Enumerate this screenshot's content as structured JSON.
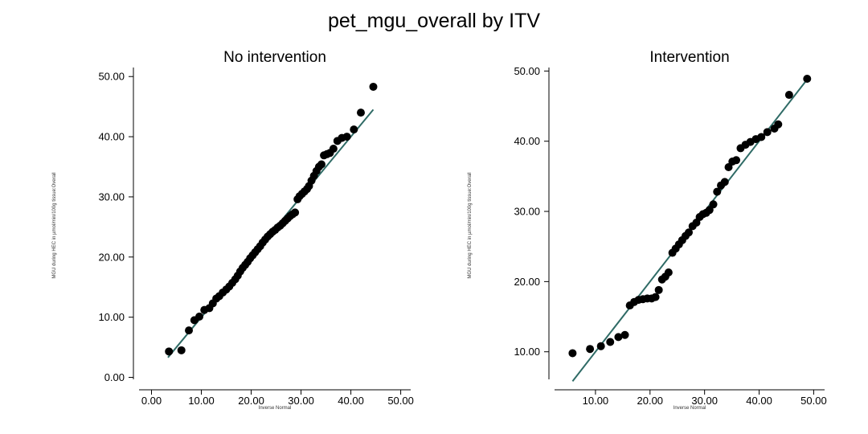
{
  "title": "pet_mgu_overall by ITV",
  "colors": {
    "points": "#000000",
    "fit_line": "#2f6b66",
    "axis": "#000000",
    "background": "#ffffff"
  },
  "chart_data": [
    {
      "type": "scatter",
      "subtitle": "No intervention",
      "xlabel": "Inverse Normal",
      "ylabel": "MGU during HEC in µmol/min/100g tissue:Overall",
      "xlim": [
        -2.5,
        52
      ],
      "ylim": [
        -1,
        51.5
      ],
      "xticks": [
        "0.00",
        "10.00",
        "20.00",
        "30.00",
        "40.00",
        "50.00"
      ],
      "yticks": [
        "0.00",
        "10.00",
        "20.00",
        "30.00",
        "40.00",
        "50.00"
      ],
      "grid": false,
      "fit_line": [
        [
          3.3,
          3.3
        ],
        [
          44.5,
          44.5
        ]
      ],
      "points": [
        [
          3.5,
          4.3
        ],
        [
          6.0,
          4.5
        ],
        [
          7.5,
          7.8
        ],
        [
          8.6,
          9.5
        ],
        [
          9.6,
          10.1
        ],
        [
          10.6,
          11.2
        ],
        [
          11.6,
          11.5
        ],
        [
          12.3,
          12.3
        ],
        [
          13.0,
          13.1
        ],
        [
          13.6,
          13.5
        ],
        [
          14.3,
          14.1
        ],
        [
          15.0,
          14.6
        ],
        [
          15.6,
          15.1
        ],
        [
          16.2,
          15.7
        ],
        [
          16.8,
          16.3
        ],
        [
          17.3,
          16.9
        ],
        [
          17.8,
          17.6
        ],
        [
          18.3,
          18.2
        ],
        [
          18.8,
          18.7
        ],
        [
          19.3,
          19.2
        ],
        [
          19.8,
          19.8
        ],
        [
          20.3,
          20.3
        ],
        [
          20.8,
          20.8
        ],
        [
          21.3,
          21.3
        ],
        [
          21.8,
          21.8
        ],
        [
          22.3,
          22.4
        ],
        [
          22.8,
          22.9
        ],
        [
          23.3,
          23.4
        ],
        [
          23.8,
          23.8
        ],
        [
          24.3,
          24.2
        ],
        [
          24.8,
          24.5
        ],
        [
          25.3,
          24.9
        ],
        [
          25.8,
          25.2
        ],
        [
          26.3,
          25.6
        ],
        [
          26.8,
          26.0
        ],
        [
          27.3,
          26.4
        ],
        [
          27.8,
          26.8
        ],
        [
          28.3,
          27.1
        ],
        [
          28.8,
          27.4
        ],
        [
          29.3,
          29.6
        ],
        [
          29.7,
          30.1
        ],
        [
          30.2,
          30.5
        ],
        [
          30.7,
          30.9
        ],
        [
          31.2,
          31.3
        ],
        [
          31.6,
          31.8
        ],
        [
          32.1,
          32.7
        ],
        [
          32.6,
          33.5
        ],
        [
          33.1,
          34.3
        ],
        [
          33.6,
          35.0
        ],
        [
          34.1,
          35.4
        ],
        [
          34.6,
          36.9
        ],
        [
          35.2,
          37.1
        ],
        [
          35.8,
          37.3
        ],
        [
          36.5,
          38.0
        ],
        [
          37.3,
          39.3
        ],
        [
          38.2,
          39.8
        ],
        [
          39.2,
          40.0
        ],
        [
          40.6,
          41.2
        ],
        [
          42.0,
          44.0
        ],
        [
          44.5,
          48.3
        ]
      ]
    },
    {
      "type": "scatter",
      "subtitle": "Intervention",
      "xlabel": "Inverse Normal",
      "ylabel": "MGU during HEC in µmol/min/100g tissue:Overall",
      "xlim": [
        2.5,
        52
      ],
      "ylim": [
        5.5,
        50.5
      ],
      "xticks": [
        "10.00",
        "20.00",
        "30.00",
        "40.00",
        "50.00"
      ],
      "yticks": [
        "10.00",
        "20.00",
        "30.00",
        "40.00",
        "50.00"
      ],
      "grid": false,
      "fit_line": [
        [
          5.8,
          5.8
        ],
        [
          49.0,
          49.0
        ]
      ],
      "points": [
        [
          5.8,
          9.8
        ],
        [
          9.0,
          10.4
        ],
        [
          11.0,
          10.8
        ],
        [
          12.7,
          11.4
        ],
        [
          14.2,
          12.1
        ],
        [
          15.4,
          12.4
        ],
        [
          16.3,
          16.6
        ],
        [
          17.1,
          17.1
        ],
        [
          17.9,
          17.4
        ],
        [
          18.7,
          17.5
        ],
        [
          19.5,
          17.6
        ],
        [
          20.3,
          17.6
        ],
        [
          21.0,
          17.8
        ],
        [
          21.6,
          18.8
        ],
        [
          22.2,
          20.3
        ],
        [
          22.8,
          20.7
        ],
        [
          23.4,
          21.3
        ],
        [
          24.1,
          24.1
        ],
        [
          24.7,
          24.7
        ],
        [
          25.3,
          25.3
        ],
        [
          25.9,
          25.9
        ],
        [
          26.5,
          26.5
        ],
        [
          27.1,
          27.0
        ],
        [
          27.8,
          27.9
        ],
        [
          28.5,
          28.4
        ],
        [
          29.1,
          29.2
        ],
        [
          29.7,
          29.6
        ],
        [
          30.3,
          29.8
        ],
        [
          30.9,
          30.2
        ],
        [
          31.6,
          31.0
        ],
        [
          32.3,
          32.8
        ],
        [
          33.0,
          33.7
        ],
        [
          33.7,
          34.2
        ],
        [
          34.4,
          36.3
        ],
        [
          35.1,
          37.1
        ],
        [
          35.8,
          37.3
        ],
        [
          36.6,
          39.0
        ],
        [
          37.5,
          39.5
        ],
        [
          38.4,
          39.9
        ],
        [
          39.4,
          40.3
        ],
        [
          40.4,
          40.6
        ],
        [
          41.5,
          41.3
        ],
        [
          42.8,
          41.8
        ],
        [
          43.5,
          42.4
        ],
        [
          45.5,
          46.6
        ],
        [
          48.8,
          48.9
        ]
      ]
    }
  ]
}
